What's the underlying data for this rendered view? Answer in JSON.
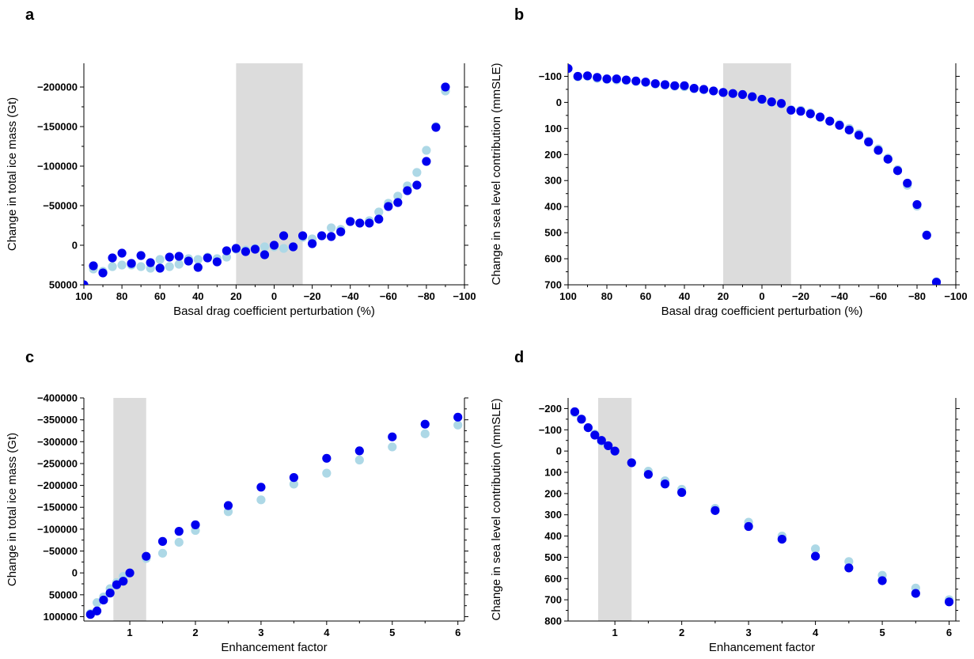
{
  "panels": [
    {
      "label": "a",
      "type": "scatter",
      "xlabel": "Basal drag coefficient perturbation (%)",
      "ylabel": "Change in total ice mass (Gt)",
      "xlim": [
        100,
        -100
      ],
      "ylim": [
        -230000,
        50000
      ],
      "xticks": [
        100,
        80,
        60,
        40,
        20,
        0,
        -20,
        -40,
        -60,
        -80,
        -100
      ],
      "xtick_labels": [
        "100",
        "80",
        "60",
        "40",
        "20",
        "0",
        "−20",
        "−40",
        "−60",
        "−80",
        "−100"
      ],
      "yticks": [
        50000,
        0,
        -50000,
        -100000,
        -150000,
        -200000
      ],
      "ytick_labels": [
        "50000",
        "0",
        "−50000",
        "−100000",
        "−150000",
        "−200000"
      ],
      "shaded_range": [
        20,
        -15
      ],
      "series": [
        {
          "color": "#add8e6",
          "x": [
            95,
            90,
            85,
            80,
            75,
            70,
            65,
            60,
            55,
            50,
            45,
            40,
            35,
            30,
            25,
            20,
            15,
            10,
            5,
            0,
            -5,
            -10,
            -15,
            -20,
            -25,
            -30,
            -35,
            -40,
            -45,
            -50,
            -55,
            -60,
            -65,
            -70,
            -75,
            -80,
            -85,
            -90
          ],
          "y": [
            30000,
            33000,
            27000,
            25000,
            25000,
            27000,
            29000,
            18000,
            27000,
            24000,
            17000,
            18000,
            15000,
            17000,
            15000,
            5000,
            6000,
            4000,
            2000,
            2000,
            4000,
            2000,
            -10000,
            -8000,
            -12000,
            -22000,
            -20000,
            -30000,
            -28000,
            -31000,
            -42000,
            -53000,
            -62000,
            -75000,
            -92000,
            -120000,
            -150000,
            -195000
          ]
        },
        {
          "color": "#0000ee",
          "x": [
            100,
            95,
            90,
            85,
            80,
            75,
            70,
            65,
            60,
            55,
            50,
            45,
            40,
            35,
            30,
            25,
            20,
            15,
            10,
            5,
            0,
            -5,
            -10,
            -15,
            -20,
            -25,
            -30,
            -35,
            -40,
            -45,
            -50,
            -55,
            -60,
            -65,
            -70,
            -75,
            -80,
            -85,
            -90
          ],
          "y": [
            50000,
            26000,
            35000,
            16000,
            10000,
            23000,
            13000,
            22000,
            29000,
            15000,
            14000,
            20000,
            28000,
            16000,
            21000,
            7000,
            4000,
            8000,
            5000,
            12000,
            0,
            -12000,
            2000,
            -12000,
            -2000,
            -12000,
            -11000,
            -17000,
            -30000,
            -28000,
            -28000,
            -33000,
            -49000,
            -54000,
            -69000,
            -76000,
            -106000,
            -149000,
            -200000
          ]
        }
      ]
    },
    {
      "label": "b",
      "type": "scatter",
      "xlabel": "Basal drag coefficient perturbation (%)",
      "ylabel": "Change in sea level contribution (mmSLE)",
      "xlim": [
        100,
        -100
      ],
      "ylim": [
        -150,
        700
      ],
      "xticks": [
        100,
        80,
        60,
        40,
        20,
        0,
        -20,
        -40,
        -60,
        -80,
        -100
      ],
      "xtick_labels": [
        "100",
        "80",
        "60",
        "40",
        "20",
        "0",
        "−20",
        "−40",
        "−60",
        "−80",
        "−100"
      ],
      "yticks": [
        -100,
        0,
        100,
        200,
        300,
        400,
        500,
        600,
        700
      ],
      "ytick_labels": [
        "−100",
        "0",
        "100",
        "200",
        "300",
        "400",
        "500",
        "600",
        "700"
      ],
      "shaded_range": [
        20,
        -15
      ],
      "series": [
        {
          "color": "#add8e6",
          "x": [
            95,
            90,
            85,
            80,
            75,
            70,
            65,
            60,
            55,
            50,
            45,
            40,
            35,
            30,
            25,
            20,
            15,
            10,
            5,
            0,
            -5,
            -10,
            -15,
            -20,
            -25,
            -30,
            -35,
            -40,
            -45,
            -50,
            -55,
            -60,
            -65,
            -70,
            -75,
            -80,
            -85,
            -90
          ],
          "y": [
            -98,
            -100,
            -92,
            -88,
            -86,
            -84,
            -80,
            -76,
            -70,
            -66,
            -62,
            -60,
            -52,
            -48,
            -44,
            -38,
            -34,
            -30,
            -20,
            -10,
            0,
            6,
            28,
            30,
            40,
            58,
            72,
            84,
            100,
            120,
            148,
            178,
            214,
            258,
            318,
            398,
            508,
            688
          ]
        },
        {
          "color": "#0000ee",
          "x": [
            100,
            95,
            90,
            85,
            80,
            75,
            70,
            65,
            60,
            55,
            50,
            45,
            40,
            35,
            30,
            25,
            20,
            15,
            10,
            5,
            0,
            -5,
            -10,
            -15,
            -20,
            -25,
            -30,
            -35,
            -40,
            -45,
            -50,
            -55,
            -60,
            -65,
            -70,
            -75,
            -80,
            -85,
            -90
          ],
          "y": [
            -130,
            -100,
            -102,
            -96,
            -90,
            -90,
            -86,
            -82,
            -78,
            -72,
            -68,
            -64,
            -64,
            -54,
            -50,
            -44,
            -38,
            -34,
            -30,
            -22,
            -12,
            -2,
            4,
            30,
            34,
            44,
            56,
            72,
            88,
            106,
            126,
            152,
            184,
            218,
            262,
            310,
            392,
            510,
            690
          ]
        }
      ]
    },
    {
      "label": "c",
      "type": "scatter",
      "xlabel": "Enhancement factor",
      "ylabel": "Change in total ice mass (Gt)",
      "xlim": [
        0.3,
        6.1
      ],
      "ylim": [
        -400000,
        110000
      ],
      "xticks": [
        1,
        2,
        3,
        4,
        5,
        6
      ],
      "xtick_labels": [
        "1",
        "2",
        "3",
        "4",
        "5",
        "6"
      ],
      "yticks": [
        100000,
        50000,
        0,
        -50000,
        -100000,
        -150000,
        -200000,
        -250000,
        -300000,
        -350000,
        -400000
      ],
      "ytick_labels": [
        "100000",
        "50000",
        "0",
        "−50000",
        "−100000",
        "−150000",
        "−200000",
        "−250000",
        "−300000",
        "−350000",
        "−400000"
      ],
      "shaded_range": [
        0.75,
        1.25
      ],
      "series": [
        {
          "color": "#add8e6",
          "x": [
            0.4,
            0.5,
            0.6,
            0.7,
            0.8,
            0.9,
            1.0,
            1.25,
            1.5,
            1.75,
            2.0,
            2.5,
            3.0,
            3.5,
            4.0,
            4.5,
            5.0,
            5.5,
            6.0
          ],
          "y": [
            93000,
            68000,
            55000,
            36000,
            22000,
            8000,
            0,
            -33000,
            -45000,
            -70000,
            -97000,
            -140000,
            -167000,
            -203000,
            -228000,
            -258000,
            -288000,
            -318000,
            -338000
          ]
        },
        {
          "color": "#0000ee",
          "x": [
            0.4,
            0.5,
            0.6,
            0.7,
            0.8,
            0.9,
            1.0,
            1.25,
            1.5,
            1.75,
            2.0,
            2.5,
            3.0,
            3.5,
            4.0,
            4.5,
            5.0,
            5.5,
            6.0
          ],
          "y": [
            95000,
            87000,
            62000,
            46000,
            27000,
            19000,
            0,
            -38000,
            -72000,
            -95000,
            -110000,
            -154000,
            -196000,
            -218000,
            -262000,
            -279000,
            -311000,
            -340000,
            -356000
          ]
        }
      ]
    },
    {
      "label": "d",
      "type": "scatter",
      "xlabel": "Enhancement factor",
      "ylabel": "Change in sea level contribution (mmSLE)",
      "xlim": [
        0.3,
        6.1
      ],
      "ylim": [
        -250,
        800
      ],
      "xticks": [
        1,
        2,
        3,
        4,
        5,
        6
      ],
      "xtick_labels": [
        "1",
        "2",
        "3",
        "4",
        "5",
        "6"
      ],
      "yticks": [
        -200,
        -100,
        0,
        100,
        200,
        300,
        400,
        500,
        600,
        700,
        800
      ],
      "ytick_labels": [
        "−200",
        "−100",
        "0",
        "100",
        "200",
        "300",
        "400",
        "500",
        "600",
        "700",
        "800"
      ],
      "shaded_range": [
        0.75,
        1.25
      ],
      "series": [
        {
          "color": "#add8e6",
          "x": [
            0.4,
            0.5,
            0.6,
            0.7,
            0.8,
            0.9,
            1.0,
            1.25,
            1.5,
            1.75,
            2.0,
            2.5,
            3.0,
            3.5,
            4.0,
            4.5,
            5.0,
            5.5,
            6.0
          ],
          "y": [
            -180,
            -150,
            -110,
            -80,
            -45,
            -25,
            0,
            55,
            95,
            140,
            180,
            270,
            335,
            400,
            460,
            520,
            585,
            645,
            700
          ]
        },
        {
          "color": "#0000ee",
          "x": [
            0.4,
            0.5,
            0.6,
            0.7,
            0.8,
            0.9,
            1.0,
            1.25,
            1.5,
            1.75,
            2.0,
            2.5,
            3.0,
            3.5,
            4.0,
            4.5,
            5.0,
            5.5,
            6.0
          ],
          "y": [
            -185,
            -150,
            -110,
            -75,
            -50,
            -25,
            0,
            55,
            110,
            155,
            195,
            280,
            355,
            415,
            495,
            550,
            610,
            670,
            710
          ]
        }
      ]
    }
  ]
}
